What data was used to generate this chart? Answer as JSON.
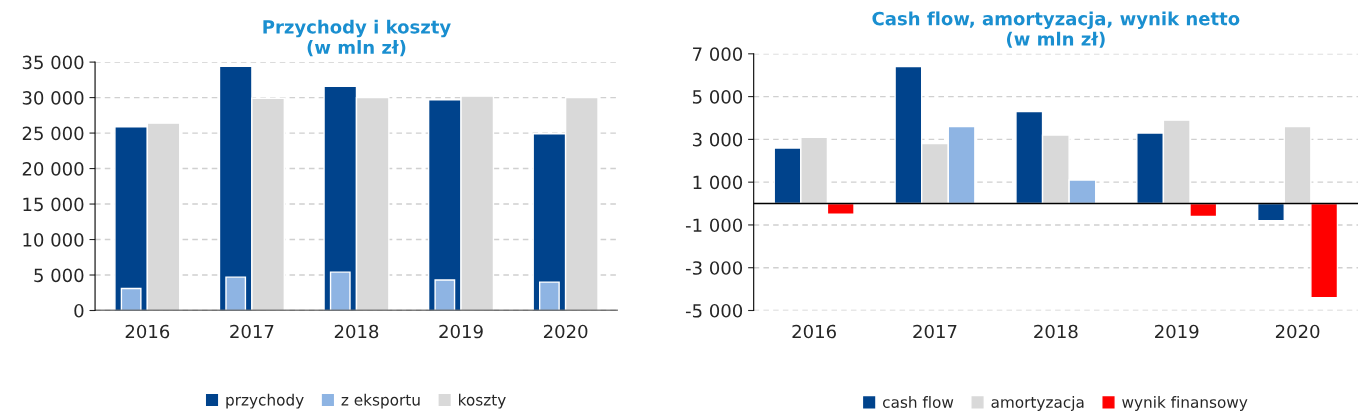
{
  "chart_data": [
    {
      "type": "bar",
      "title": "Przychody i koszty\n(w mln zł)",
      "categories": [
        "2016",
        "2017",
        "2018",
        "2019",
        "2020"
      ],
      "series": [
        {
          "name": "przychody",
          "color": "#00438c",
          "values": [
            25900,
            34400,
            31600,
            29700,
            24900
          ]
        },
        {
          "name": "z eksportu",
          "color": "#8eb4e3",
          "values": [
            3100,
            4700,
            5400,
            4300,
            4000
          ]
        },
        {
          "name": "koszty",
          "color": "#d9d9d9",
          "values": [
            26400,
            29900,
            30000,
            30200,
            30000
          ]
        }
      ],
      "ylim": [
        0,
        35000
      ],
      "yticks": [
        {
          "value": 0,
          "label": "0"
        },
        {
          "value": 5000,
          "label": "5 000"
        },
        {
          "value": 10000,
          "label": "10 000"
        },
        {
          "value": 15000,
          "label": "15 000"
        },
        {
          "value": 20000,
          "label": "20 000"
        },
        {
          "value": 25000,
          "label": "25 000"
        },
        {
          "value": 30000,
          "label": "30 000"
        },
        {
          "value": 35000,
          "label": "35 000"
        }
      ],
      "grid": "y",
      "legend": "bottom"
    },
    {
      "type": "bar",
      "title": "Cash flow, amortyzacja, wynik netto\n(w mln zł)",
      "categories": [
        "2016",
        "2017",
        "2018",
        "2019",
        "2020"
      ],
      "series": [
        {
          "name": "cash flow",
          "color": "#00438c",
          "values": [
            2600,
            6400,
            4300,
            3300,
            -800
          ]
        },
        {
          "name": "amortyzacja",
          "color": "#d9d9d9",
          "values": [
            3100,
            2800,
            3200,
            3900,
            3600
          ]
        },
        {
          "name": "wynik finansowy",
          "color": "#ff0000",
          "colors": [
            "#ff0000",
            "#8eb4e3",
            "#8eb4e3",
            "#ff0000",
            "#ff0000"
          ],
          "values": [
            -500,
            3600,
            1100,
            -600,
            -4400
          ]
        }
      ],
      "ylim": [
        -5000,
        7000
      ],
      "yticks": [
        {
          "value": -5000,
          "label": "-5 000"
        },
        {
          "value": -3000,
          "label": "-3 000"
        },
        {
          "value": -1000,
          "label": "-1 000"
        },
        {
          "value": 1000,
          "label": "1 000"
        },
        {
          "value": 3000,
          "label": "3 000"
        },
        {
          "value": 5000,
          "label": "5 000"
        },
        {
          "value": 7000,
          "label": "7 000"
        }
      ],
      "grid": "y",
      "legend": "bottom"
    }
  ]
}
